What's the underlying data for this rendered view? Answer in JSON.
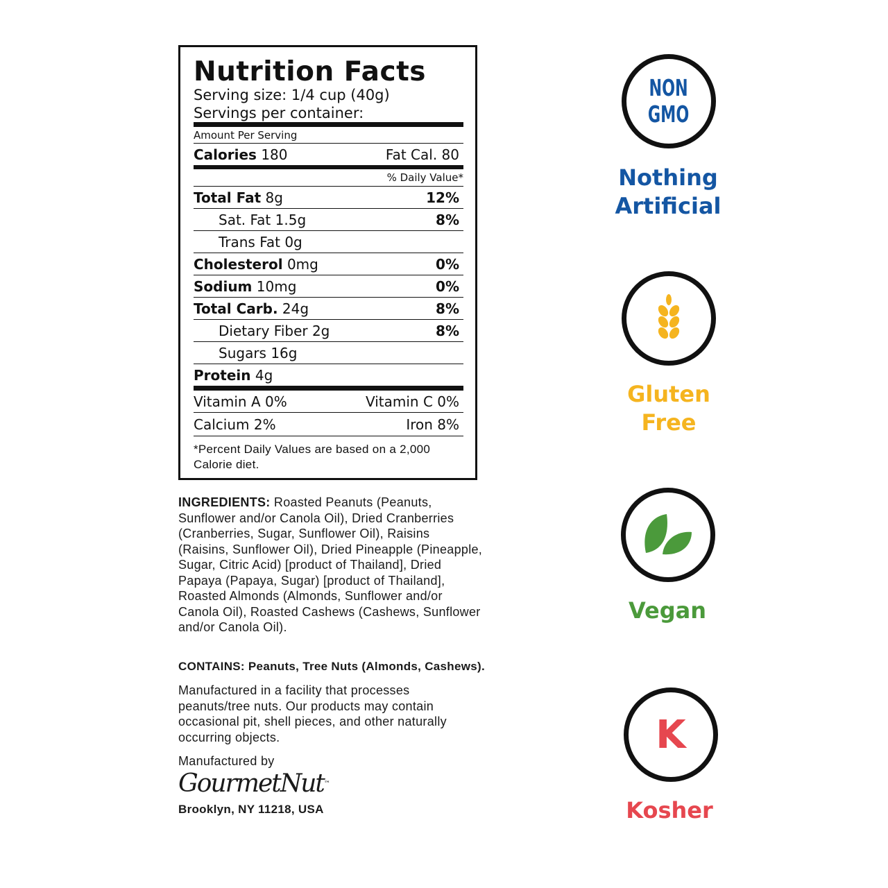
{
  "nutrition": {
    "title": "Nutrition Facts",
    "serving_size": "Serving size: 1/4 cup (40g)",
    "servings_per_container": "Servings per container:",
    "amount_per_serving": "Amount Per Serving",
    "calories_label": "Calories",
    "calories_value": "180",
    "fat_cal": "Fat Cal. 80",
    "daily_value_header": "% Daily Value*",
    "rows": [
      {
        "label": "Total Fat",
        "amount": "8g",
        "dv": "12%"
      },
      {
        "label": "Sat. Fat 1.5g",
        "amount": "",
        "dv": "8%"
      },
      {
        "label": "Trans Fat 0g",
        "amount": "",
        "dv": ""
      },
      {
        "label": "Cholesterol",
        "amount": "0mg",
        "dv": "0%"
      },
      {
        "label": "Sodium",
        "amount": "10mg",
        "dv": "0%"
      },
      {
        "label": "Total Carb.",
        "amount": "24g",
        "dv": "8%"
      },
      {
        "label": "Dietary Fiber 2g",
        "amount": "",
        "dv": "8%"
      },
      {
        "label": "Sugars 16g",
        "amount": "",
        "dv": ""
      },
      {
        "label": "Protein",
        "amount": "4g",
        "dv": ""
      }
    ],
    "vitamin_a": "Vitamin A 0%",
    "vitamin_c": "Vitamin C 0%",
    "calcium": "Calcium 2%",
    "iron": "Iron 8%",
    "footnote": "*Percent Daily Values are based on a 2,000 Calorie diet."
  },
  "ingredients": {
    "label": "INGREDIENTS:",
    "text": "Roasted Peanuts (Peanuts, Sunflower and/or Canola Oil), Dried Cranberries (Cranberries, Sugar, Sunflower Oil), Raisins (Raisins, Sunflower Oil), Dried Pineapple (Pineapple, Sugar, Citric Acid) [product of Thailand], Dried Papaya (Papaya, Sugar) [product of Thailand], Roasted Almonds (Almonds, Sunflower and/or Canola Oil), Roasted Cashews (Cashews, Sunflower and/or Canola Oil)."
  },
  "contains": {
    "label": "CONTAINS:",
    "text": "Peanuts, Tree Nuts (Almonds, Cashews)."
  },
  "facility_note": "Manufactured in a facility that processes peanuts/tree nuts. Our products may contain occasional pit, shell pieces, and other naturally occurring objects.",
  "manufacturer": {
    "label": "Manufactured by",
    "brand": "GourmetNut",
    "trademark": "™",
    "address": "Brooklyn, NY 11218, USA"
  },
  "badges": [
    {
      "icon": "non-gmo-icon",
      "icon_text_1": "NON",
      "icon_text_2": "GMO",
      "label_1": "Nothing",
      "label_2": "Artificial",
      "color": "#1456a3"
    },
    {
      "icon": "wheat-icon",
      "label_1": "Gluten",
      "label_2": "Free",
      "color": "#f5b41f"
    },
    {
      "icon": "leaves-icon",
      "label_1": "Vegan",
      "color": "#4b9a3b"
    },
    {
      "icon": "kosher-k-icon",
      "icon_text_1": "K",
      "label_1": "Kosher",
      "color": "#e6474f"
    }
  ]
}
